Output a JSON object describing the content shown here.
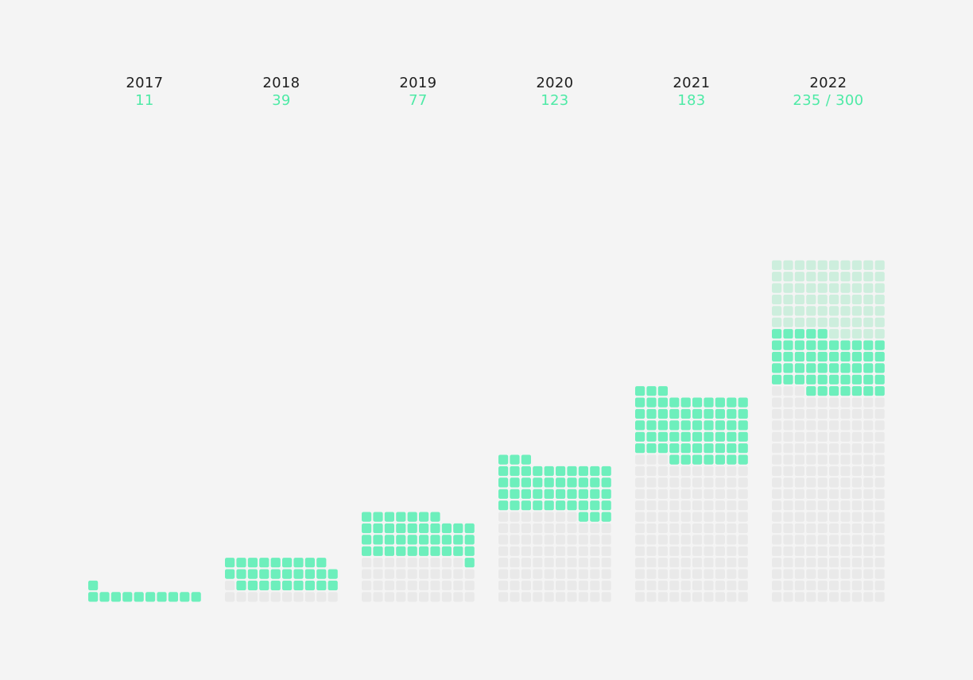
{
  "colors": {
    "background": "#f4f4f4",
    "year_text": "#1e1e1e",
    "value_text": "#4eeaa6",
    "filled_previous": "#e9e9e9",
    "filled_new": "#6defbc",
    "target_remaining": "#cdeedd"
  },
  "chart_data": {
    "type": "waffle",
    "cells_per_row": 10,
    "unit": "one square per item",
    "categories": [
      "2017",
      "2018",
      "2019",
      "2020",
      "2021",
      "2022"
    ],
    "values": [
      11,
      39,
      77,
      123,
      183,
      235
    ],
    "value_labels": [
      "11",
      "39",
      "77",
      "123",
      "183",
      "235"
    ],
    "target": {
      "year": "2022",
      "value": 300,
      "label": "300",
      "separator": "/"
    },
    "legend": "none",
    "grid": false
  }
}
